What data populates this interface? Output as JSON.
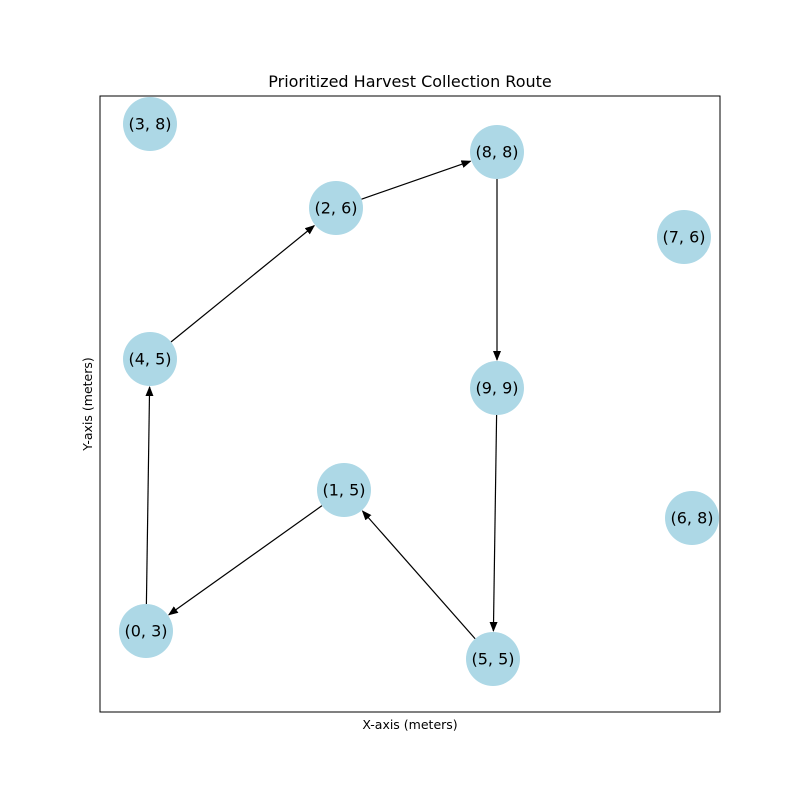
{
  "figure": {
    "title": "Prioritized Harvest Collection Route",
    "xlabel": "X-axis (meters)",
    "ylabel": "Y-axis (meters)",
    "node_color": "#add8e6",
    "edge_color": "#000000"
  },
  "nodes": [
    {
      "id": "n38",
      "label": "(3, 8)"
    },
    {
      "id": "n88",
      "label": "(8, 8)"
    },
    {
      "id": "n26",
      "label": "(2, 6)"
    },
    {
      "id": "n76",
      "label": "(7, 6)"
    },
    {
      "id": "n45",
      "label": "(4, 5)"
    },
    {
      "id": "n99",
      "label": "(9, 9)"
    },
    {
      "id": "n15",
      "label": "(1, 5)"
    },
    {
      "id": "n68",
      "label": "(6, 8)"
    },
    {
      "id": "n03",
      "label": "(0, 3)"
    },
    {
      "id": "n55",
      "label": "(5, 5)"
    }
  ],
  "route": [
    "n55",
    "n15",
    "n03",
    "n45",
    "n26",
    "n88",
    "n99",
    "n55"
  ]
}
